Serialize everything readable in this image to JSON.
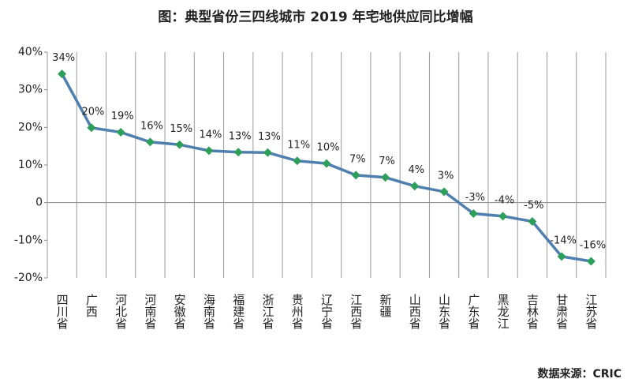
{
  "chart_data": {
    "type": "line",
    "title": "图：典型省份三四线城市 2019 年宅地供应同比增幅",
    "source": "数据来源：CRIC",
    "categories": [
      "四川省",
      "广西",
      "河北省",
      "河南省",
      "安徽省",
      "海南省",
      "福建省",
      "浙江省",
      "贵州省",
      "辽宁省",
      "江西省",
      "新疆",
      "山西省",
      "山东省",
      "广东省",
      "黑龙江",
      "吉林省",
      "甘肃省",
      "江苏省"
    ],
    "series": [
      {
        "name": "同比增幅",
        "color": "#4f7fae",
        "marker_color": "#2e9e5b",
        "values": [
          34.2,
          19.9,
          18.7,
          16.1,
          15.4,
          13.8,
          13.4,
          13.3,
          11.1,
          10.4,
          7.3,
          6.7,
          4.4,
          2.9,
          -2.9,
          -3.6,
          -5.0,
          -14.3,
          -15.6
        ],
        "value_labels": [
          "34%",
          "20%",
          "19%",
          "16%",
          "15%",
          "14%",
          "13%",
          "13%",
          "11%",
          "10%",
          "7%",
          "7%",
          "4%",
          "3%",
          "-3%",
          "-4%",
          "-5%",
          "-14%",
          "-16%"
        ]
      }
    ],
    "ylim": [
      -20,
      40
    ],
    "yticks": [
      {
        "value": -20,
        "label": "-20%"
      },
      {
        "value": -10,
        "label": "-10%"
      },
      {
        "value": 0,
        "label": "0"
      },
      {
        "value": 10,
        "label": "10%"
      },
      {
        "value": 20,
        "label": "20%"
      },
      {
        "value": 30,
        "label": "30%"
      },
      {
        "value": 40,
        "label": "40%"
      }
    ],
    "grid": "vertical"
  }
}
